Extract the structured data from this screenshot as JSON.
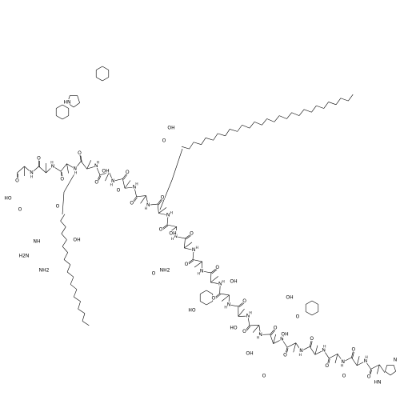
{
  "backbone": {
    "nitrogen": "N",
    "hydrogen": "H",
    "oxygen": "O"
  },
  "side_chain_labels": [
    "HO",
    "O",
    "NH2",
    "H2N",
    "NH",
    "HN",
    "OH",
    "O",
    "OH",
    "O",
    "NH2",
    "O",
    "OH",
    "HO",
    "OH",
    "HO",
    "OH",
    "OH",
    "O",
    "OH",
    "HN",
    "N",
    "O",
    "OH",
    "O",
    "O"
  ]
}
